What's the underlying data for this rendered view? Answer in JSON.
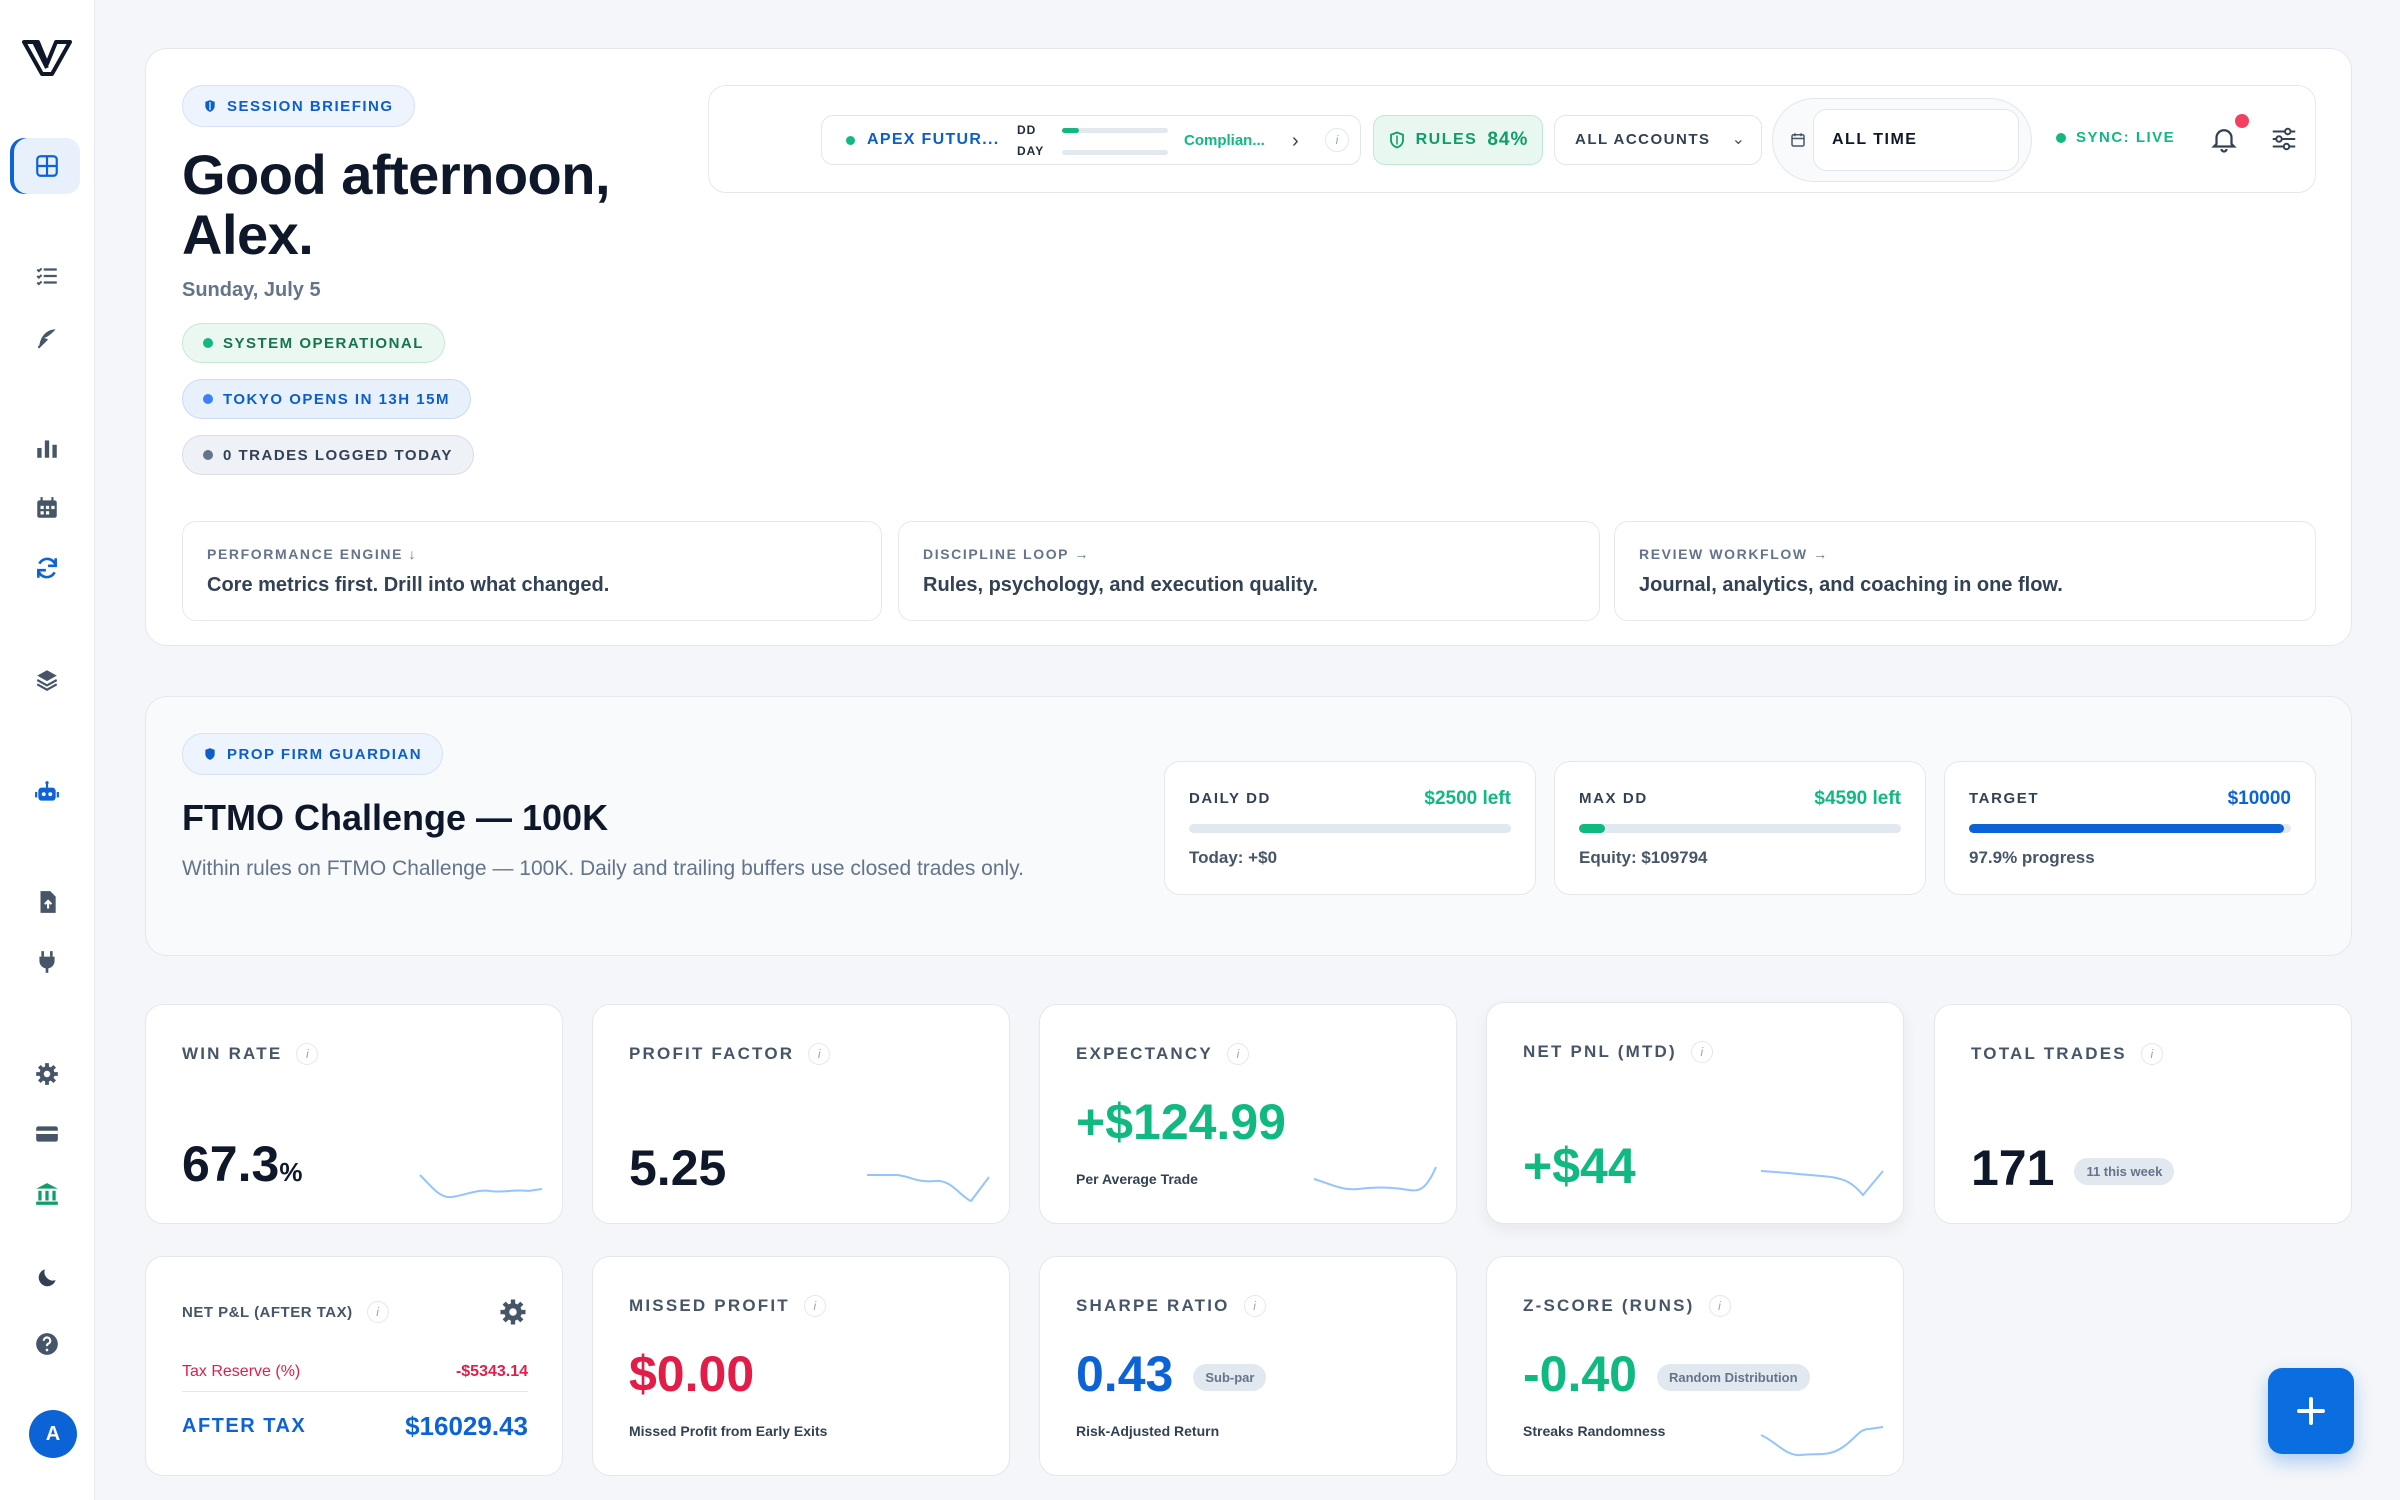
{
  "briefing": {
    "badge": "SESSION BRIEFING",
    "greeting": "Good afternoon, Alex.",
    "date": "Sunday, July 5",
    "status": [
      "SYSTEM OPERATIONAL",
      "TOKYO OPENS IN 13H 15M",
      "0 TRADES LOGGED TODAY"
    ]
  },
  "toolbar": {
    "account_name": "APEX FUTUR...",
    "dd_label": "DD",
    "day_label": "DAY",
    "dd_progress": 0.16,
    "day_progress": 0,
    "compliance": "Complian...",
    "info": "i",
    "rules_label": "RULES",
    "rules_pct": "84%",
    "accounts_select": "ALL ACCOUNTS",
    "time_range": "ALL TIME",
    "sync": "SYNC: LIVE"
  },
  "sub_cards": [
    {
      "title": "PERFORMANCE ENGINE",
      "arrow": "↓",
      "text": "Core metrics first. Drill into what changed."
    },
    {
      "title": "DISCIPLINE LOOP",
      "arrow": "→",
      "text": "Rules, psychology, and execution quality."
    },
    {
      "title": "REVIEW WORKFLOW",
      "arrow": "→",
      "text": "Journal, analytics, and coaching in one flow."
    }
  ],
  "prop": {
    "badge": "PROP FIRM GUARDIAN",
    "title": "FTMO Challenge — 100K",
    "desc": "Within rules on FTMO Challenge — 100K. Daily and trailing buffers use closed trades only.",
    "cards": [
      {
        "label": "DAILY DD",
        "right": "$2500 left",
        "sub": "Today: +$0",
        "progress": 0,
        "color": "#10b981"
      },
      {
        "label": "MAX DD",
        "right": "$4590 left",
        "sub": "Equity: $109794",
        "progress": 0.08,
        "color": "#10b981"
      },
      {
        "label": "TARGET",
        "right": "$10000",
        "sub": "97.9% progress",
        "progress": 0.979,
        "color": "#0b63d6"
      }
    ]
  },
  "metrics": {
    "win_rate": {
      "label": "WIN RATE",
      "value": "67.3",
      "unit": "%"
    },
    "profit_factor": {
      "label": "PROFIT FACTOR",
      "value": "5.25"
    },
    "expectancy": {
      "label": "EXPECTANCY",
      "value": "+$124.99",
      "sub": "Per Average Trade"
    },
    "net_pnl": {
      "label": "NET PNL (MTD)",
      "value": "+$44"
    },
    "total_trades": {
      "label": "TOTAL TRADES",
      "value": "171",
      "tag": "11 this week"
    },
    "after_tax": {
      "label": "NET P&L (AFTER TAX)",
      "tax_label": "Tax Reserve (%)",
      "tax_value": "-$5343.14",
      "after_label": "AFTER TAX",
      "after_value": "$16029.43"
    },
    "missed": {
      "label": "MISSED PROFIT",
      "value": "$0.00",
      "sub": "Missed Profit from Early Exits"
    },
    "sharpe": {
      "label": "SHARPE RATIO",
      "value": "0.43",
      "tag": "Sub-par",
      "sub": "Risk-Adjusted Return"
    },
    "zscore": {
      "label": "Z-SCORE (RUNS)",
      "value": "-0.40",
      "tag": "Random Distribution",
      "sub": "Streaks Randomness"
    }
  },
  "user": {
    "initial": "A"
  },
  "colors": {
    "accent": "#0b63d6",
    "positive": "#10b981",
    "negative": "#e11d48"
  }
}
